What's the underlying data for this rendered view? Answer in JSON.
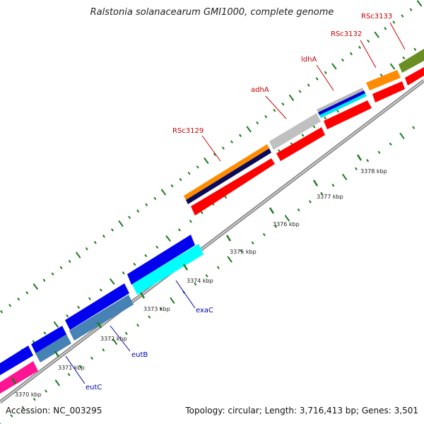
{
  "header": {
    "title": "Ralstonia solanacearum GMI1000, complete genome"
  },
  "footer": {
    "accession": "Accession: NC_003295",
    "summary": "Topology: circular; Length: 3,716,413 bp; Genes: 3,501"
  },
  "colors": {
    "backbone": "#8c8c8c",
    "tick": "#1a7a1a",
    "forward_label": "#cc0000",
    "reverse_label": "#0000aa"
  },
  "ruler": {
    "labels": [
      "3370 kbp",
      "3371 kbp",
      "3372 kbp",
      "3373 kbp",
      "3374 kbp",
      "3375 kbp",
      "3376 kbp",
      "3377 kbp",
      "3378 kbp"
    ]
  },
  "genes": {
    "forward_labels": [
      "RSc3129",
      "adhA",
      "ldhA",
      "RSc3132",
      "RSc3133"
    ],
    "reverse_labels": [
      "exaC",
      "eutB",
      "eutC"
    ]
  }
}
